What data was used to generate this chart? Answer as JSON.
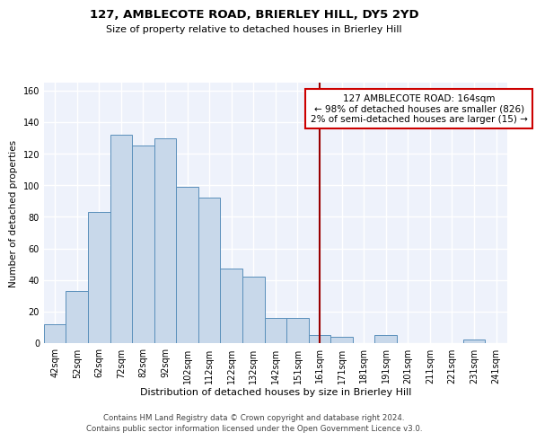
{
  "title": "127, AMBLECOTE ROAD, BRIERLEY HILL, DY5 2YD",
  "subtitle": "Size of property relative to detached houses in Brierley Hill",
  "xlabel": "Distribution of detached houses by size in Brierley Hill",
  "ylabel": "Number of detached properties",
  "bar_labels": [
    "42sqm",
    "52sqm",
    "62sqm",
    "72sqm",
    "82sqm",
    "92sqm",
    "102sqm",
    "112sqm",
    "122sqm",
    "132sqm",
    "142sqm",
    "151sqm",
    "161sqm",
    "171sqm",
    "181sqm",
    "191sqm",
    "201sqm",
    "211sqm",
    "221sqm",
    "231sqm",
    "241sqm"
  ],
  "bar_values": [
    12,
    33,
    83,
    132,
    125,
    130,
    99,
    92,
    47,
    42,
    16,
    16,
    5,
    4,
    0,
    5,
    0,
    0,
    0,
    2,
    0
  ],
  "bar_color": "#c8d8ea",
  "bar_edge_color": "#5a8fbb",
  "vline_x_index": 12,
  "vline_color": "#990000",
  "annotation_line1": "127 AMBLECOTE ROAD: 164sqm",
  "annotation_line2": "← 98% of detached houses are smaller (826)",
  "annotation_line3": "2% of semi-detached houses are larger (15) →",
  "annotation_box_color": "#ffffff",
  "annotation_box_edge": "#cc0000",
  "ylim": [
    0,
    165
  ],
  "yticks": [
    0,
    20,
    40,
    60,
    80,
    100,
    120,
    140,
    160
  ],
  "background_color": "#eef2fb",
  "grid_color": "#ffffff",
  "footer1": "Contains HM Land Registry data © Crown copyright and database right 2024.",
  "footer2": "Contains public sector information licensed under the Open Government Licence v3.0."
}
